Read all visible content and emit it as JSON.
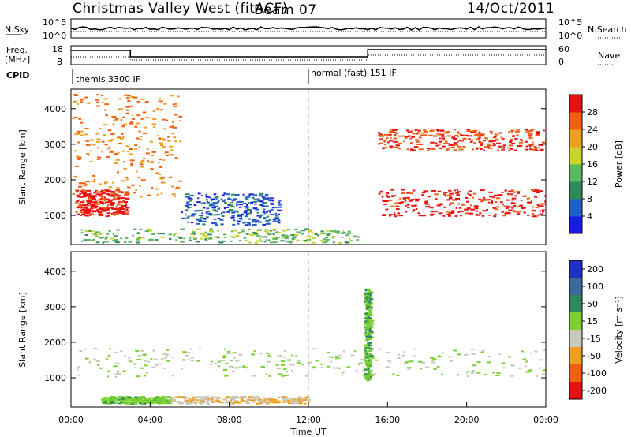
{
  "header": {
    "station": "Christmas Valley West (fitACF)",
    "beam": "Beam 07",
    "date": "14/Oct/2011"
  },
  "panels": {
    "nsky": {
      "left_label": "N.Sky",
      "left_ticks": [
        "10^5",
        "10^0"
      ],
      "right_label": "N.Search",
      "right_ticks": [
        "10^5",
        "10^0"
      ]
    },
    "freq": {
      "left_label_line1": "Freq.",
      "left_label_line2": "[MHz]",
      "left_ticks": [
        "18",
        "8"
      ],
      "right_label": "Nave",
      "right_ticks": [
        "60",
        "0"
      ]
    },
    "cpid": {
      "label": "CPID",
      "segments": [
        {
          "text": "themis 3300 IF",
          "start_hour": 0,
          "end_hour": 12.0
        },
        {
          "text": "normal (fast) 151 IF",
          "start_hour": 12.0,
          "end_hour": 24
        }
      ]
    }
  },
  "chart_data": [
    {
      "type": "heatmap",
      "parameter": "power",
      "ylabel": "Slant Range [km]",
      "yticks": [
        1000,
        2000,
        3000,
        4000
      ],
      "ylim": [
        180,
        4550
      ],
      "xlim": [
        0,
        24
      ],
      "colorbar": {
        "title": "Power [dB]",
        "range": [
          0,
          32
        ],
        "ticks": [
          4,
          8,
          12,
          16,
          20,
          24,
          28
        ],
        "colors": [
          "#1a1ae6",
          "#1e60c8",
          "#2e8b57",
          "#5cb85c",
          "#c8d42a",
          "#f0a020",
          "#f06010",
          "#e81010"
        ]
      },
      "features": [
        {
          "description": "near-range ground/ionospheric band",
          "x": [
            0.5,
            14.5
          ],
          "range_km": [
            200,
            600
          ],
          "power_db": 14
        },
        {
          "description": "strong main band",
          "x": [
            0.2,
            2.8
          ],
          "range_km": [
            950,
            1700
          ],
          "power_db": 30
        },
        {
          "description": "main band evening",
          "x": [
            15.5,
            24
          ],
          "range_km": [
            950,
            1700
          ],
          "power_db": 30
        },
        {
          "description": "upper band",
          "x": [
            15.5,
            24
          ],
          "range_km": [
            2800,
            3400
          ],
          "power_db": 28
        },
        {
          "description": "diagonal streaks",
          "x": [
            0,
            5.5
          ],
          "range_km": [
            1500,
            4400
          ],
          "power_db": 24
        },
        {
          "description": "weak echoes",
          "x": [
            5.5,
            10.5
          ],
          "range_km": [
            700,
            1600
          ],
          "power_db": 6
        }
      ]
    },
    {
      "type": "heatmap",
      "parameter": "velocity",
      "xlabel": "Time UT",
      "ylabel": "Slant Range [km]",
      "yticks": [
        1000,
        2000,
        3000,
        4000
      ],
      "ylim": [
        180,
        4550
      ],
      "xlim": [
        0,
        24
      ],
      "xticks": [
        "00:00",
        "04:00",
        "08:00",
        "12:00",
        "16:00",
        "20:00",
        "00:00"
      ],
      "colorbar": {
        "title": "Velocity [m s⁻¹]",
        "levels": [
          "200",
          "100",
          "50",
          "15",
          "-15",
          "-50",
          "-100",
          "-200"
        ],
        "colors": [
          "#2030c0",
          "#3a6a9a",
          "#2e8b57",
          "#7ad030",
          "#c8c8c0",
          "#f0a020",
          "#f06010",
          "#e81010"
        ]
      },
      "features": [
        {
          "description": "low velocity band (grey)",
          "x": [
            0.2,
            24
          ],
          "range_km": [
            1000,
            1800
          ],
          "velocity": 0
        },
        {
          "description": "near-range positive",
          "x": [
            1.5,
            5.0
          ],
          "range_km": [
            250,
            450
          ],
          "velocity": 25
        },
        {
          "description": "near-range negative",
          "x": [
            5.0,
            12
          ],
          "range_km": [
            250,
            450
          ],
          "velocity": -30
        },
        {
          "description": "green vertical feature",
          "x": [
            14.8,
            15.1
          ],
          "range_km": [
            900,
            3500
          ],
          "velocity": 30
        }
      ]
    }
  ]
}
